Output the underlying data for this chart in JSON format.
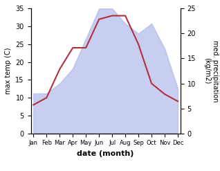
{
  "months": [
    "Jan",
    "Feb",
    "Mar",
    "Apr",
    "May",
    "Jun",
    "Jul",
    "Aug",
    "Sep",
    "Oct",
    "Nov",
    "Dec"
  ],
  "temperature": [
    8,
    10,
    18,
    24,
    24,
    32,
    33,
    33,
    25,
    14,
    11,
    9
  ],
  "precipitation": [
    8,
    8,
    10,
    13,
    19,
    25,
    25,
    22,
    20,
    22,
    17,
    9
  ],
  "temp_ylim": [
    0,
    35
  ],
  "precip_ylim": [
    0,
    25
  ],
  "temp_color": "#b03040",
  "precip_color": "#aab4e8",
  "precip_alpha": 0.65,
  "xlabel": "date (month)",
  "ylabel_left": "max temp (C)",
  "ylabel_right": "med. precipitation\n(kg/m2)",
  "left_yticks": [
    0,
    5,
    10,
    15,
    20,
    25,
    30,
    35
  ],
  "right_yticks": [
    0,
    5,
    10,
    15,
    20,
    25
  ]
}
